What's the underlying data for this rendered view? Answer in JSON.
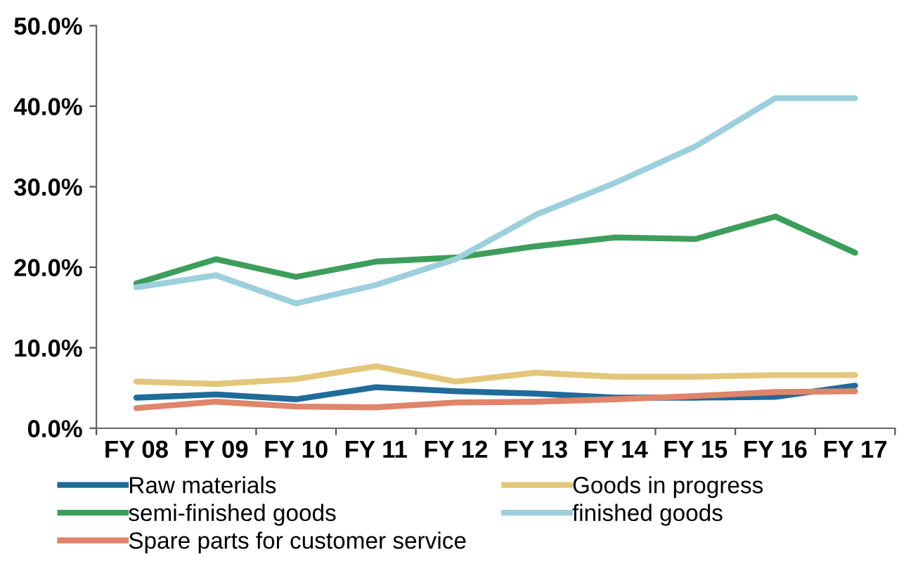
{
  "chart_data": {
    "type": "line",
    "categories": [
      "FY 08",
      "FY 09",
      "FY 10",
      "FY 11",
      "FY 12",
      "FY 13",
      "FY 14",
      "FY 15",
      "FY 16",
      "FY 17"
    ],
    "series": [
      {
        "name": "Raw materials",
        "color": "#1f6b9a",
        "values": [
          3.8,
          4.2,
          3.6,
          5.1,
          4.6,
          4.3,
          3.8,
          3.8,
          3.9,
          5.3
        ]
      },
      {
        "name": "Goods in progress",
        "color": "#e3c67a",
        "values": [
          5.8,
          5.5,
          6.1,
          7.7,
          5.8,
          6.9,
          6.4,
          6.4,
          6.6,
          6.6
        ]
      },
      {
        "name": "semi-finished goods",
        "color": "#3d9e5c",
        "values": [
          18,
          21,
          18.8,
          20.7,
          21.2,
          22.6,
          23.7,
          23.5,
          26.3,
          21.8
        ]
      },
      {
        "name": "finished goods",
        "color": "#9dcfdd",
        "values": [
          17.5,
          19,
          15.5,
          17.8,
          21,
          26.5,
          30.5,
          35,
          41,
          41
        ]
      },
      {
        "name": "Spare parts for customer service",
        "color": "#e0846a",
        "values": [
          2.5,
          3.3,
          2.7,
          2.6,
          3.2,
          3.3,
          3.6,
          4.0,
          4.5,
          4.6
        ]
      }
    ],
    "ylim": [
      0,
      50
    ],
    "yticks": [
      {
        "value": 0,
        "label": "0.0%"
      },
      {
        "value": 10,
        "label": "10.0%"
      },
      {
        "value": 20,
        "label": "20.0%"
      },
      {
        "value": 30,
        "label": "30.0%"
      },
      {
        "value": 40,
        "label": "40.0%"
      },
      {
        "value": 50,
        "label": "50.0%"
      }
    ],
    "grid": false,
    "legend": "bottom",
    "marker": "none",
    "line_style": "solid"
  }
}
